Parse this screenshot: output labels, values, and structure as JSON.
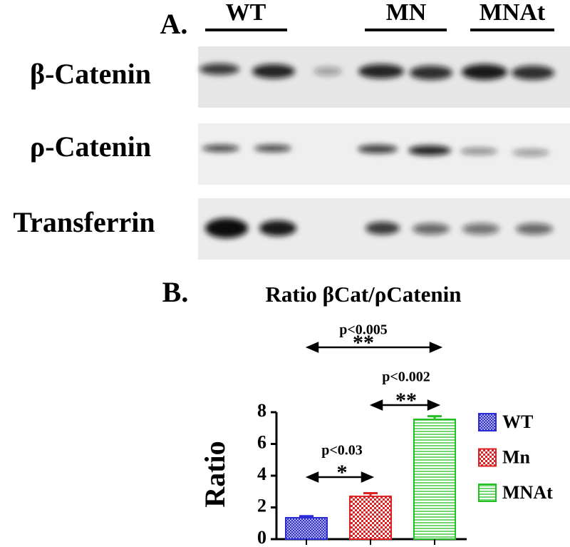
{
  "blot": {
    "panel_label": "A.",
    "lanes": [
      "WT",
      "MN",
      "MNAt"
    ],
    "rows": [
      "β-Catenin",
      "ρ-Catenin",
      "Transferrin"
    ]
  },
  "chart_data": {
    "type": "bar",
    "panel_label": "B.",
    "title": "Ratio βCat/ρCatenin",
    "ylabel": "Ratio",
    "ylim": [
      0,
      8
    ],
    "yticks": [
      0,
      2,
      4,
      6,
      8
    ],
    "series": [
      {
        "name": "WT",
        "color": "#2b2bd6",
        "values": [
          1.35
        ],
        "errors": [
          0.1
        ]
      },
      {
        "name": "Mn",
        "color": "#e02020",
        "values": [
          2.7
        ],
        "errors": [
          0.2
        ]
      },
      {
        "name": "MNAt",
        "color": "#22c022",
        "values": [
          7.55
        ],
        "errors": [
          0.2
        ]
      }
    ],
    "annotations": [
      {
        "label": "p<0.005",
        "stars": "**"
      },
      {
        "label": "p<0.002",
        "stars": "**"
      },
      {
        "label": "p<0.03",
        "stars": "*"
      }
    ]
  }
}
